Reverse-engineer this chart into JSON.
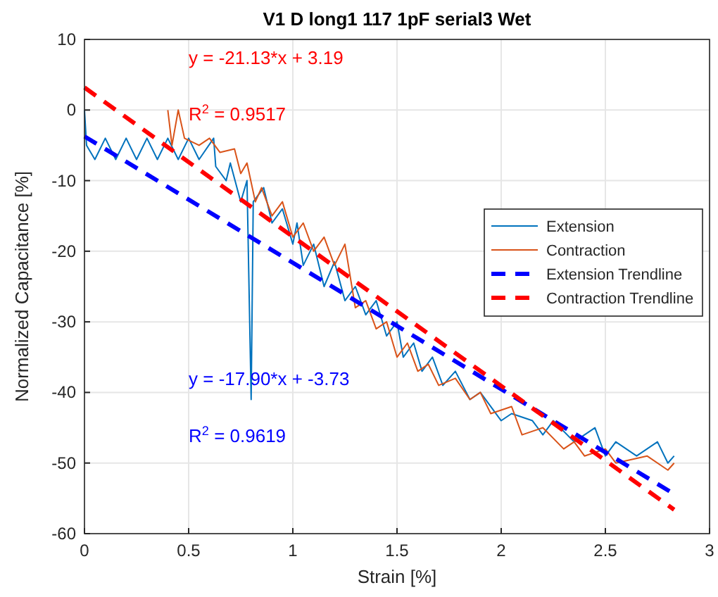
{
  "chart_data": {
    "type": "line",
    "title": "V1 D long1 117 1pF serial3 Wet",
    "xlabel": "Strain [%]",
    "ylabel": "Normalized Capacitance [%]",
    "xlim": [
      0,
      3
    ],
    "xticks": [
      0,
      0.5,
      1,
      1.5,
      2,
      2.5,
      3
    ],
    "ylim": [
      -60,
      10
    ],
    "yticks": [
      -60,
      -50,
      -40,
      -30,
      -20,
      -10,
      0,
      10
    ],
    "grid": true,
    "legend": "right",
    "annotations": [
      "y =  -21.13*x + 3.19",
      "R$^{2}$ = 0.9517",
      "y = -17.90*x + -3.73",
      "R$^{2}$ = 0.9619"
    ],
    "series": [
      {
        "name": "Extension",
        "color": "#0072bd",
        "x": [
          0,
          0.01,
          0.05,
          0.1,
          0.15,
          0.2,
          0.25,
          0.3,
          0.35,
          0.4,
          0.45,
          0.5,
          0.55,
          0.62,
          0.63,
          0.68,
          0.7,
          0.75,
          0.78,
          0.8,
          0.81,
          0.86,
          0.9,
          0.95,
          1.0,
          1.02,
          1.05,
          1.1,
          1.15,
          1.2,
          1.25,
          1.3,
          1.35,
          1.4,
          1.45,
          1.5,
          1.53,
          1.58,
          1.62,
          1.67,
          1.72,
          1.78,
          1.85,
          1.9,
          2.0,
          2.05,
          2.15,
          2.2,
          2.25,
          2.35,
          2.45,
          2.5,
          2.55,
          2.65,
          2.75,
          2.8,
          2.83
        ],
        "values": [
          0,
          -5,
          -7,
          -4,
          -7,
          -4,
          -7,
          -4,
          -7,
          -4,
          -7,
          -4,
          -7,
          -4,
          -8,
          -10,
          -7.5,
          -13,
          -10,
          -41,
          -13,
          -11,
          -16,
          -14,
          -19,
          -16,
          -22,
          -19,
          -25,
          -21.5,
          -27,
          -25,
          -29,
          -27,
          -32,
          -30,
          -35,
          -33,
          -37,
          -35,
          -39,
          -37,
          -41,
          -40,
          -44,
          -43,
          -44,
          -46,
          -44,
          -47,
          -45,
          -49,
          -47,
          -49,
          -47,
          -50,
          -49
        ]
      },
      {
        "name": "Contraction",
        "color": "#d95319",
        "x": [
          0.4,
          0.42,
          0.45,
          0.48,
          0.55,
          0.6,
          0.65,
          0.72,
          0.75,
          0.78,
          0.82,
          0.85,
          0.9,
          0.95,
          1.0,
          1.05,
          1.1,
          1.15,
          1.2,
          1.25,
          1.3,
          1.35,
          1.4,
          1.45,
          1.5,
          1.55,
          1.6,
          1.65,
          1.7,
          1.78,
          1.85,
          1.9,
          1.95,
          2.05,
          2.1,
          2.2,
          2.3,
          2.35,
          2.4,
          2.5,
          2.55,
          2.7,
          2.8,
          2.83
        ],
        "values": [
          0,
          -5,
          0,
          -4,
          -5,
          -4,
          -6,
          -5.5,
          -9,
          -7.5,
          -13,
          -11,
          -15,
          -13,
          -18,
          -16,
          -20,
          -18,
          -22,
          -19,
          -28,
          -27,
          -31,
          -30,
          -35,
          -33,
          -37,
          -36,
          -39,
          -38,
          -41,
          -40,
          -43,
          -42,
          -46,
          -45,
          -48,
          -47,
          -49,
          -48,
          -50,
          -49,
          -51,
          -50
        ]
      },
      {
        "name": "Extension Trendline",
        "color": "#0000ff",
        "line_style": "dashed",
        "x": [
          0,
          2.83
        ],
        "values": [
          -3.73,
          -54.39
        ]
      },
      {
        "name": "Contraction Trendline",
        "color": "#ff0000",
        "line_style": "dashed",
        "x": [
          0,
          2.83
        ],
        "values": [
          3.19,
          -56.61
        ]
      }
    ]
  }
}
